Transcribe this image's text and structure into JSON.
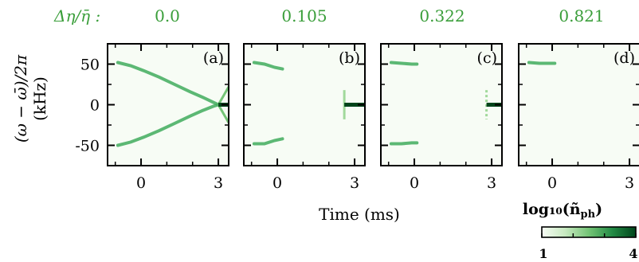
{
  "chart_data": {
    "type": "heatmap",
    "param_label": "Δη/η̄ :",
    "panels": [
      {
        "param_value": "0.0",
        "tag": "(a)",
        "top_row_value_label": "0.0"
      },
      {
        "param_value": "0.105",
        "tag": "(b)"
      },
      {
        "param_value": "0.322",
        "tag": "(c)"
      },
      {
        "param_value": "0.821",
        "tag": "(d)"
      }
    ],
    "ylabel_line1": "(ω − ω̄)/2π",
    "ylabel_line2": "(kHz)",
    "xlabel": "Time (ms)",
    "xticks": [
      0,
      3
    ],
    "xtick_labels": [
      "0",
      "3"
    ],
    "yticks": [
      50,
      0,
      -50
    ],
    "ytick_labels": [
      "50",
      "0",
      "-50"
    ],
    "xlim": [
      -1.3,
      3.4
    ],
    "ylim": [
      -75,
      75
    ],
    "colorbar": {
      "label": "log₁₀(ñ",
      "label_sub": "ph",
      "label_close": ")",
      "ticks": [
        "1",
        "4"
      ],
      "range": [
        1,
        4
      ],
      "colormap": "Greens"
    },
    "features": [
      {
        "panel": "(a)",
        "upper_branch": [
          [
            -0.9,
            52
          ],
          [
            -0.4,
            48
          ],
          [
            0.1,
            42
          ],
          [
            0.7,
            34
          ],
          [
            1.3,
            25
          ],
          [
            1.9,
            16
          ],
          [
            2.4,
            9
          ],
          [
            2.8,
            3
          ],
          [
            3.0,
            0
          ]
        ],
        "lower_branch": [
          [
            -0.9,
            -50
          ],
          [
            -0.4,
            -46
          ],
          [
            0.1,
            -40
          ],
          [
            0.7,
            -32
          ],
          [
            1.3,
            -23
          ],
          [
            1.9,
            -14
          ],
          [
            2.4,
            -7
          ],
          [
            2.8,
            -2
          ],
          [
            3.0,
            0
          ]
        ],
        "cross_lines_after": 3.0,
        "steady_line": {
          "x0": 3.0,
          "x1": 3.4,
          "y": 0
        }
      },
      {
        "panel": "(b)",
        "upper_branch": [
          [
            -0.9,
            52
          ],
          [
            -0.5,
            50
          ],
          [
            -0.1,
            46
          ],
          [
            0.2,
            44
          ]
        ],
        "lower_branch": [
          [
            -0.9,
            -48
          ],
          [
            -0.5,
            -48
          ],
          [
            -0.1,
            -44
          ],
          [
            0.2,
            -42
          ]
        ],
        "vertical_x": 2.6,
        "steady_line": {
          "x0": 2.6,
          "x1": 3.4,
          "y": 0
        }
      },
      {
        "panel": "(c)",
        "upper_branch": [
          [
            -0.9,
            52
          ],
          [
            -0.5,
            51
          ],
          [
            -0.1,
            50
          ],
          [
            0.1,
            50
          ]
        ],
        "lower_branch": [
          [
            -0.9,
            -48
          ],
          [
            -0.5,
            -48
          ],
          [
            -0.1,
            -47
          ],
          [
            0.1,
            -47
          ]
        ],
        "vertical_x": 2.8,
        "steady_line": {
          "x0": 2.8,
          "x1": 3.4,
          "y": 0
        }
      },
      {
        "panel": "(d)",
        "upper_branch": [
          [
            -0.9,
            52
          ],
          [
            -0.5,
            51
          ],
          [
            -0.1,
            51
          ],
          [
            0.1,
            51
          ]
        ]
      }
    ]
  }
}
